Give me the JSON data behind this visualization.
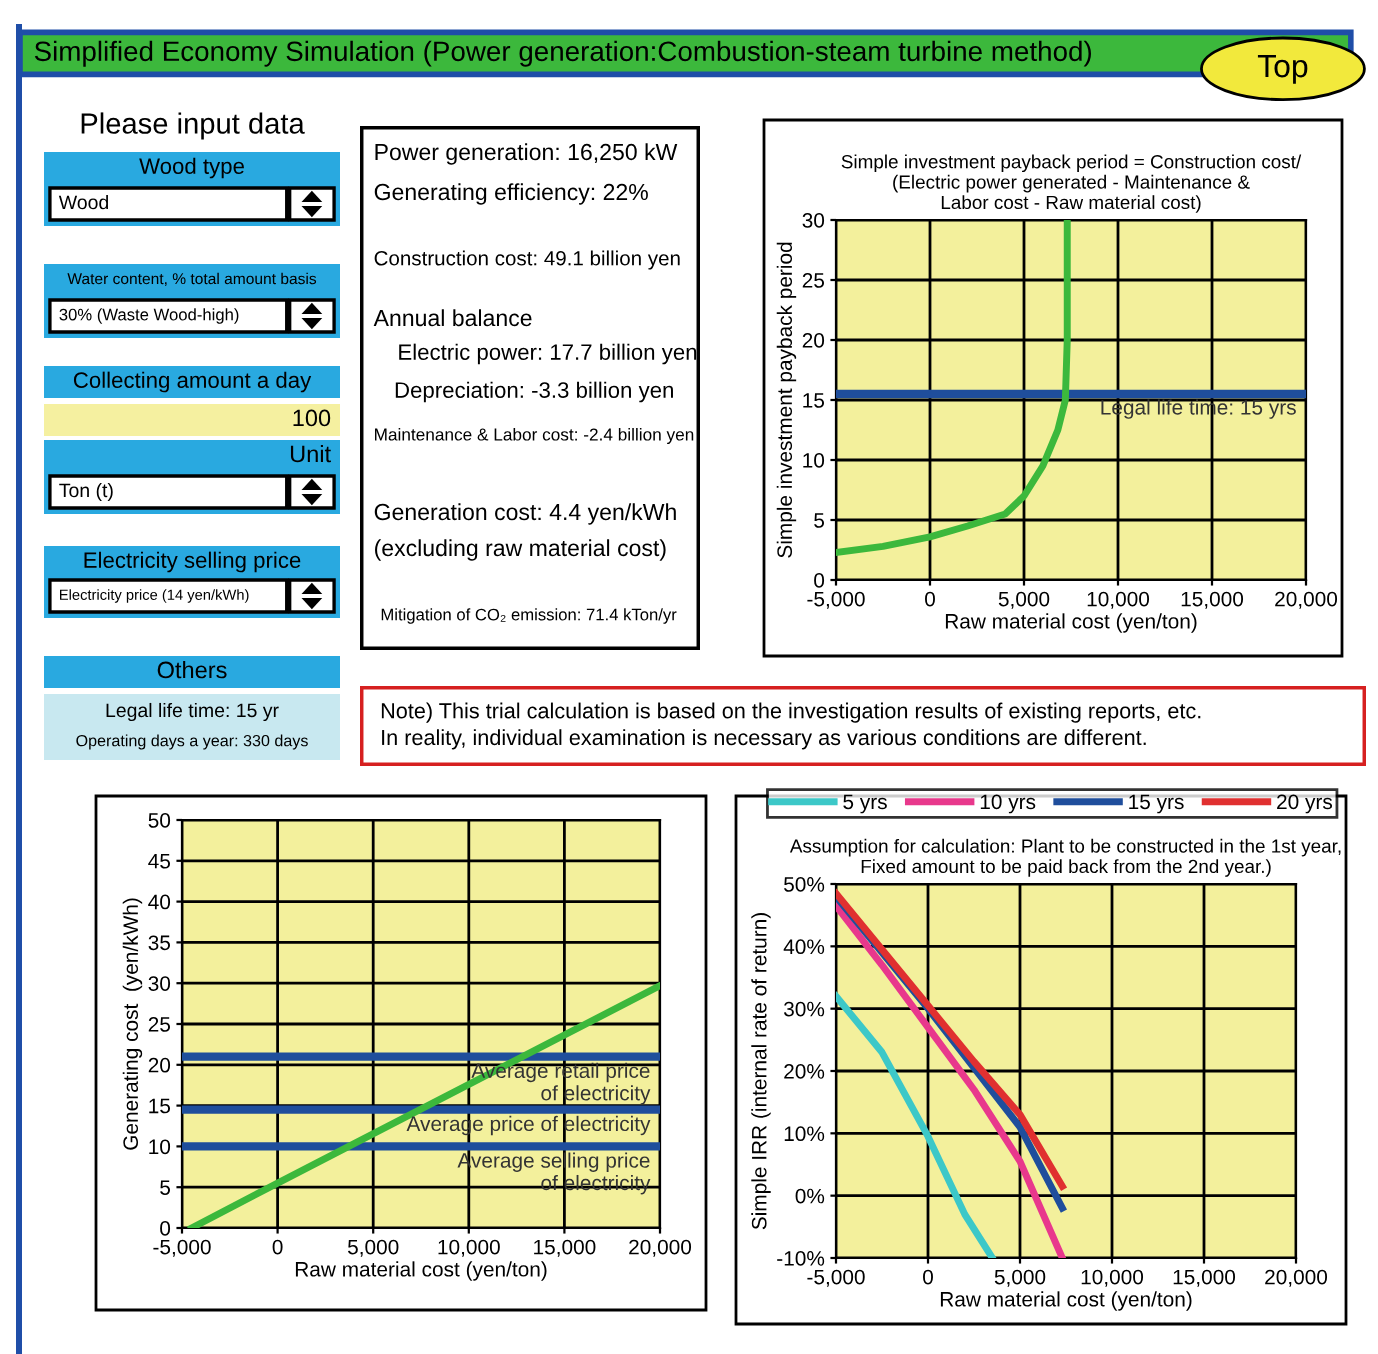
{
  "chart_data": [
    {
      "type": "other",
      "title": "Simplified Economy Simulation (Power generation:Combustion-steam turbine method)",
      "annotations": [
        "Top"
      ]
    },
    {
      "type": "other",
      "title": "Please input data",
      "annotations": [
        "Wood type",
        "Wood",
        "Water content, % total amount basis",
        "30% (Waste Wood-high)",
        "Collecting amount a day",
        "100",
        "Unit",
        "Ton (t)",
        "Electricity selling price",
        "Electricity price (14 yen/kWh)",
        "Others",
        "Legal life time: 15 yr",
        "Operating days a year: 330 days"
      ]
    },
    {
      "type": "other",
      "annotations": [
        "Power generation: 16,250 kW",
        "Generating efficiency: 22%",
        "Construction cost: 49.1 billion yen",
        "Annual balance",
        "Electric power: 17.7 billion yen",
        "Depreciation: -3.3 billion yen",
        "Maintenance & Labor cost: -2.4 billion yen",
        "Generation cost: 4.4 yen/kWh",
        "(excluding raw material cost)",
        "Mitigation of CO₂ emission: 71.4 kTon/yr"
      ]
    },
    {
      "type": "line",
      "title": "Simple investment payback period = Construction cost/\n(Electric power generated - Maintenance &\nLabor cost - Raw material cost)",
      "xlabel": "Raw material cost (yen/ton)",
      "ylabel": "Simple investment payback period",
      "series": [
        {
          "color": "#3cb83c",
          "x": [
            -5000,
            -2500,
            0,
            2000,
            4000,
            5000,
            6000,
            6800,
            7200,
            7300,
            7300
          ],
          "values": [
            2.3,
            2.8,
            3.6,
            4.5,
            5.5,
            7,
            9.5,
            12.5,
            15,
            20,
            30
          ]
        }
      ],
      "xlim": [
        -5000,
        20000
      ],
      "xticks": [
        {
          "value": -5000,
          "label": "-5,000"
        },
        0,
        {
          "value": 5000,
          "label": "5,000"
        },
        {
          "value": 10000,
          "label": "10,000"
        },
        {
          "value": 15000,
          "label": "15,000"
        },
        {
          "value": 20000,
          "label": "20,000"
        }
      ],
      "ylim": [
        0,
        30
      ],
      "yticks": [
        0,
        5,
        10,
        15,
        20,
        25,
        30
      ],
      "grid": true,
      "ref_lines": [
        {
          "axis": "y",
          "value": 15.5,
          "label": "Legal life time: 15 yrs",
          "color": "#1f4e9c"
        }
      ]
    },
    {
      "type": "other",
      "annotations": [
        "Note) This trial calculation is based on the investigation results of existing reports, etc.",
        "In reality, individual examination is necessary as various conditions are different."
      ]
    },
    {
      "type": "line",
      "xlabel": "Raw material cost (yen/ton)",
      "ylabel": "Generating cost  (yen/kWh)",
      "series": [
        {
          "color": "#3cb83c",
          "x": [
            -4500,
            0,
            20000
          ],
          "values": [
            0,
            5.5,
            29.7
          ]
        }
      ],
      "xlim": [
        -5000,
        20000
      ],
      "xticks": [
        {
          "value": -5000,
          "label": "-5,000"
        },
        0,
        {
          "value": 5000,
          "label": "5,000"
        },
        {
          "value": 10000,
          "label": "10,000"
        },
        {
          "value": 15000,
          "label": "15,000"
        },
        {
          "value": 20000,
          "label": "20,000"
        }
      ],
      "ylim": [
        0,
        50
      ],
      "yticks": [
        0,
        5,
        10,
        15,
        20,
        25,
        30,
        35,
        40,
        45,
        50
      ],
      "grid": true,
      "ref_lines": [
        {
          "axis": "y",
          "value": 21,
          "label": "Average retail price\nof electricity",
          "color": "#1f4e9c"
        },
        {
          "axis": "y",
          "value": 14.5,
          "label": "Average price of electricity",
          "color": "#1f4e9c"
        },
        {
          "axis": "y",
          "value": 10,
          "label": "Average selling price\nof electricity",
          "color": "#1f4e9c"
        }
      ]
    },
    {
      "type": "line",
      "title": "Assumption for calculation: Plant to be constructed in the 1st year,\nFixed amount to be paid back from the 2nd year.)",
      "xlabel": "Raw material cost (yen/ton)",
      "ylabel": "Simple IRR (internal rate of return)",
      "series": [
        {
          "name": "5 yrs",
          "color": "#3cc8c8",
          "x": [
            -5000,
            -2500,
            0,
            2000,
            3500
          ],
          "values": [
            32,
            23,
            9.5,
            -3,
            -10
          ]
        },
        {
          "name": "10 yrs",
          "color": "#e8388c",
          "x": [
            -5000,
            -2500,
            0,
            2500,
            5000,
            7300
          ],
          "values": [
            46.5,
            37,
            27,
            17,
            5.5,
            -10
          ]
        },
        {
          "name": "15 yrs",
          "color": "#1f4e9c",
          "x": [
            -5000,
            -2500,
            0,
            2500,
            5000,
            7300
          ],
          "values": [
            48,
            39,
            30,
            20.5,
            11,
            -2
          ]
        },
        {
          "name": "20 yrs",
          "color": "#e03030",
          "x": [
            -5000,
            -2500,
            0,
            2500,
            5000,
            7300
          ],
          "values": [
            48.5,
            39.5,
            30.5,
            21.5,
            13,
            1.5
          ]
        }
      ],
      "xlim": [
        -5000,
        20000
      ],
      "xticks": [
        {
          "value": -5000,
          "label": "-5,000"
        },
        0,
        {
          "value": 5000,
          "label": "5,000"
        },
        {
          "value": 10000,
          "label": "10,000"
        },
        {
          "value": 15000,
          "label": "15,000"
        },
        {
          "value": 20000,
          "label": "20,000"
        }
      ],
      "ylim": [
        -10,
        50
      ],
      "yticks": [
        {
          "value": -10,
          "label": "-10%"
        },
        {
          "value": 0,
          "label": "0%"
        },
        {
          "value": 10,
          "label": "10%"
        },
        {
          "value": 20,
          "label": "20%"
        },
        {
          "value": 30,
          "label": "30%"
        },
        {
          "value": 40,
          "label": "40%"
        },
        {
          "value": 50,
          "label": "50%"
        }
      ],
      "grid": true,
      "legend": "top"
    }
  ]
}
